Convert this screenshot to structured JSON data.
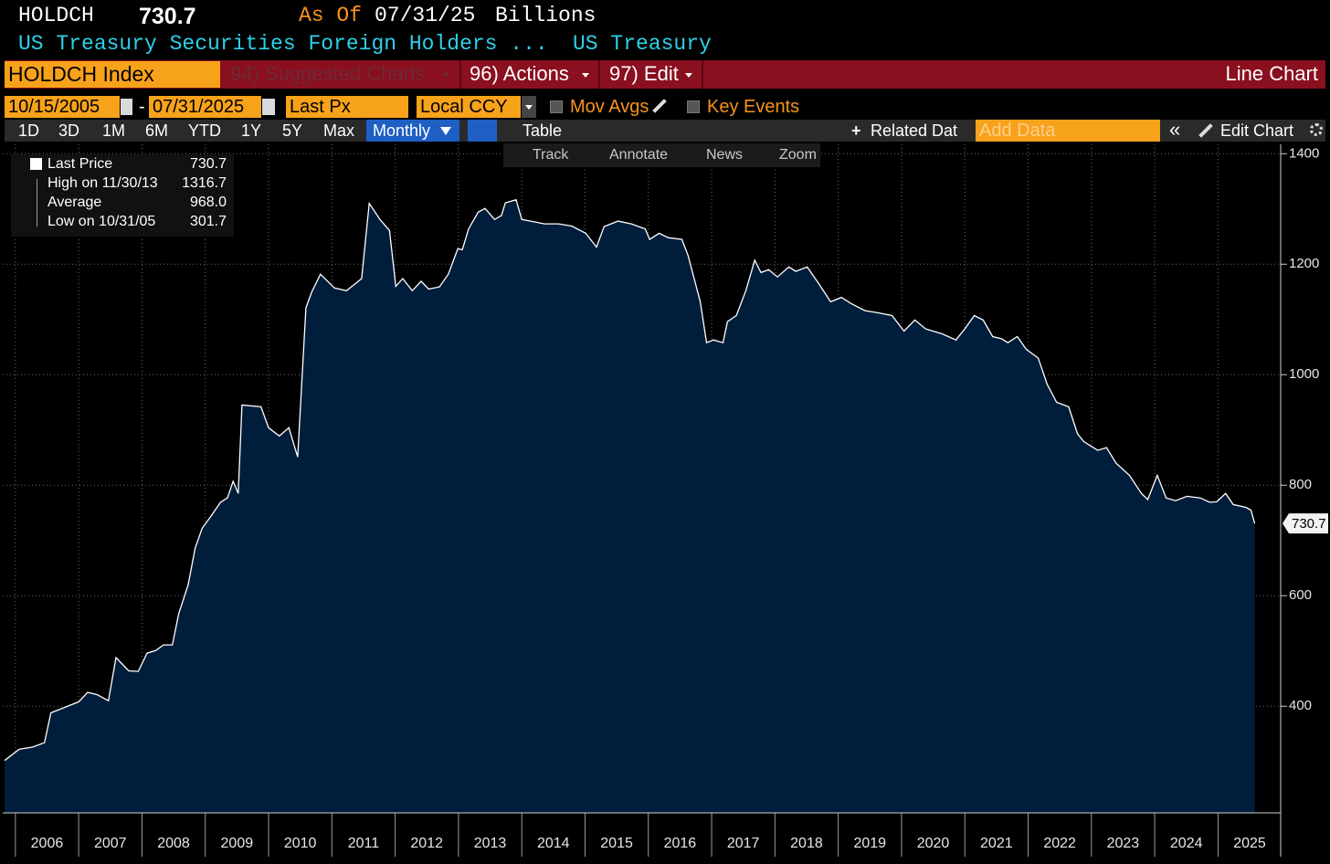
{
  "header": {
    "ticker": "HOLDCH",
    "last": "730.7",
    "as_of": "As Of",
    "date": "07/31/25",
    "units": "Billions",
    "description": "US Treasury Securities Foreign Holders ...",
    "source": "US Treasury"
  },
  "toolbar": {
    "security": "HOLDCH Index",
    "menus": [
      "94) Suggested Charts",
      "96) Actions",
      "97) Edit"
    ],
    "chart_type": "Line Chart"
  },
  "controls": {
    "start_date": "10/15/2005",
    "separator": "-",
    "end_date": "07/31/2025",
    "field": "Last Px",
    "currency": "Local CCY",
    "options": [
      "Mov Avgs",
      "Key Events"
    ]
  },
  "ranges": {
    "periods": [
      "1D",
      "3D",
      "1M",
      "6M",
      "YTD",
      "1Y",
      "5Y",
      "Max"
    ],
    "frequency": "Monthly",
    "table": "Table",
    "related": "Related Dat",
    "add_data": "Add Data",
    "collapse": "«",
    "edit_chart": "Edit Chart"
  },
  "tools": [
    "Track",
    "Annotate",
    "News",
    "Zoom"
  ],
  "legend": {
    "last_value": "730.7",
    "stats": [
      {
        "label": "High on 11/30/13",
        "value": "1316.7"
      },
      {
        "label": "Average",
        "value": "968.0"
      },
      {
        "label": "Low on 10/31/05",
        "value": "301.7"
      }
    ]
  },
  "chart_data": {
    "type": "line",
    "x": [
      2005.83,
      2006.06,
      2006.27,
      2006.46,
      2006.56,
      2006.78,
      2007.0,
      2007.14,
      2007.29,
      2007.47,
      2007.59,
      2007.79,
      2007.94,
      2008.08,
      2008.22,
      2008.34,
      2008.48,
      2008.58,
      2008.73,
      2008.84,
      2008.95,
      2009.09,
      2009.24,
      2009.35,
      2009.44,
      2009.52,
      2009.58,
      2009.88,
      2010.0,
      2010.17,
      2010.32,
      2010.46,
      2010.59,
      2010.68,
      2010.82,
      2011.04,
      2011.23,
      2011.47,
      2011.59,
      2011.76,
      2011.91,
      2012.01,
      2012.12,
      2012.27,
      2012.41,
      2012.53,
      2012.7,
      2012.84,
      2012.99,
      2013.06,
      2013.16,
      2013.31,
      2013.42,
      2013.57,
      2013.68,
      2013.74,
      2013.91,
      2014.0,
      2014.14,
      2014.36,
      2014.58,
      2014.79,
      2015.01,
      2015.18,
      2015.3,
      2015.52,
      2015.73,
      2015.95,
      2016.02,
      2016.17,
      2016.31,
      2016.53,
      2016.63,
      2016.82,
      2016.92,
      2017.03,
      2017.18,
      2017.25,
      2017.39,
      2017.54,
      2017.68,
      2017.78,
      2017.9,
      2018.04,
      2018.22,
      2018.33,
      2018.51,
      2018.69,
      2018.88,
      2019.05,
      2019.2,
      2019.42,
      2019.63,
      2019.85,
      2020.04,
      2020.21,
      2020.38,
      2020.64,
      2020.86,
      2021.0,
      2021.15,
      2021.29,
      2021.44,
      2021.58,
      2021.68,
      2021.83,
      2021.97,
      2022.16,
      2022.3,
      2022.45,
      2022.64,
      2022.78,
      2022.88,
      2023.1,
      2023.24,
      2023.39,
      2023.6,
      2023.79,
      2023.89,
      2024.04,
      2024.18,
      2024.33,
      2024.51,
      2024.72,
      2024.87,
      2024.98,
      2025.12,
      2025.24,
      2025.44,
      2025.52,
      2025.58
    ],
    "series": [
      {
        "name": "Last Price",
        "color": "#ffffff",
        "fill": "#011d3c",
        "values": [
          301.7,
          322,
          326,
          334,
          388,
          398,
          408,
          425,
          421,
          410,
          488,
          464,
          463,
          496,
          501,
          511,
          511,
          567,
          620,
          686,
          722,
          744,
          769,
          777,
          807,
          785,
          945,
          942,
          904,
          889,
          904,
          851,
          1121,
          1149,
          1182,
          1157,
          1152,
          1174,
          1310,
          1281,
          1261,
          1160,
          1174,
          1152,
          1169,
          1155,
          1159,
          1182,
          1228,
          1226,
          1264,
          1294,
          1301,
          1281,
          1288,
          1311,
          1316.7,
          1281,
          1278,
          1273,
          1273,
          1269,
          1256,
          1231,
          1268,
          1278,
          1273,
          1264,
          1245,
          1256,
          1248,
          1245,
          1215,
          1132,
          1058,
          1063,
          1058,
          1096,
          1107,
          1152,
          1207,
          1185,
          1190,
          1177,
          1195,
          1187,
          1195,
          1165,
          1132,
          1140,
          1129,
          1116,
          1112,
          1107,
          1079,
          1099,
          1083,
          1074,
          1063,
          1083,
          1107,
          1099,
          1069,
          1065,
          1058,
          1069,
          1046,
          1030,
          983,
          950,
          942,
          893,
          879,
          863,
          868,
          840,
          818,
          785,
          774,
          818,
          777,
          772,
          780,
          777,
          769,
          770,
          785,
          765,
          760,
          755,
          730.7
        ]
      }
    ],
    "xlim": [
      2005.8,
      2025.99
    ],
    "ylim": [
      207,
      1417
    ],
    "xticks": [
      2006,
      2007,
      2008,
      2009,
      2010,
      2011,
      2012,
      2013,
      2014,
      2015,
      2016,
      2017,
      2018,
      2019,
      2020,
      2021,
      2022,
      2023,
      2024,
      2025
    ],
    "yticks": [
      400,
      600,
      800,
      1000,
      1200,
      1400
    ],
    "grid": true
  }
}
